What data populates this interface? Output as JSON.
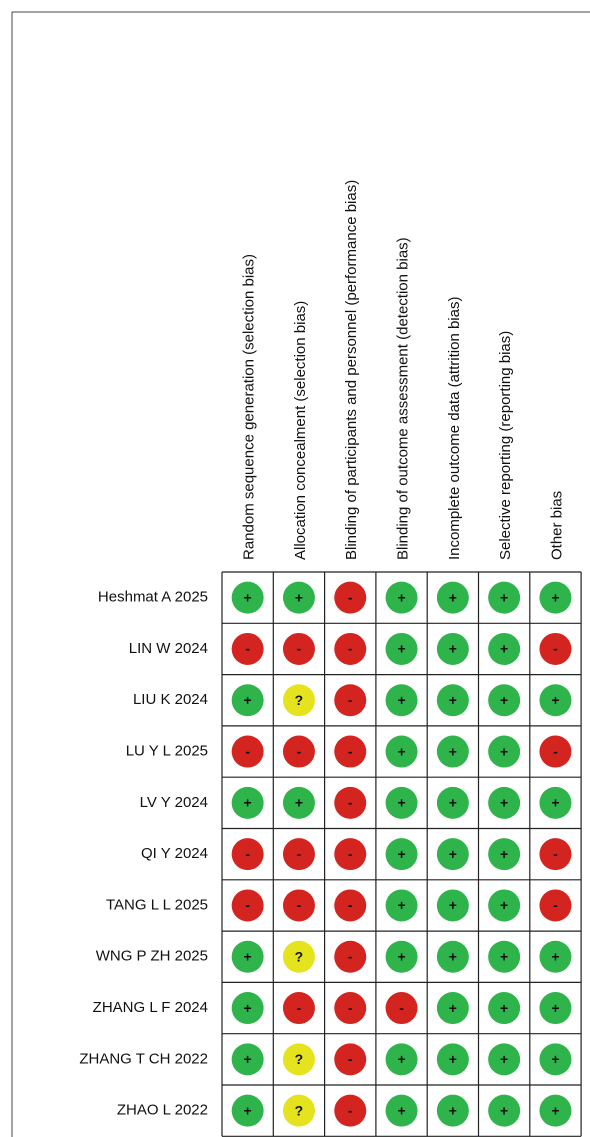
{
  "columns": [
    "Random sequence generation (selection bias)",
    "Allocation concealment (selection bias)",
    "Blinding of participants and personnel (performance bias)",
    "Blinding of outcome assessment (detection bias)",
    "Incomplete outcome data (attrition bias)",
    "Selective reporting (reporting bias)",
    "Other bias"
  ],
  "judgment_colors": {
    "+": "#2fb34b",
    "-": "#d3241f",
    "?": "#e4e31e"
  },
  "rows": [
    {
      "study": "Heshmat A  2025",
      "judgments": [
        "+",
        "+",
        "-",
        "+",
        "+",
        "+",
        "+"
      ]
    },
    {
      "study": "LIN W 2024",
      "judgments": [
        "-",
        "-",
        "-",
        "+",
        "+",
        "+",
        "-"
      ]
    },
    {
      "study": "LIU K 2024",
      "judgments": [
        "+",
        "?",
        "-",
        "+",
        "+",
        "+",
        "+"
      ]
    },
    {
      "study": "LU Y L 2025",
      "judgments": [
        "-",
        "-",
        "-",
        "+",
        "+",
        "+",
        "-"
      ]
    },
    {
      "study": "LV Y 2024",
      "judgments": [
        "+",
        "+",
        "-",
        "+",
        "+",
        "+",
        "+"
      ]
    },
    {
      "study": "QI Y 2024",
      "judgments": [
        "-",
        "-",
        "-",
        "+",
        "+",
        "+",
        "-"
      ]
    },
    {
      "study": "TANG L L 2025",
      "judgments": [
        "-",
        "-",
        "-",
        "+",
        "+",
        "+",
        "-"
      ]
    },
    {
      "study": "WNG P ZH 2025",
      "judgments": [
        "+",
        "?",
        "-",
        "+",
        "+",
        "+",
        "+"
      ]
    },
    {
      "study": "ZHANG L F 2024",
      "judgments": [
        "+",
        "-",
        "-",
        "-",
        "+",
        "+",
        "+"
      ]
    },
    {
      "study": "ZHANG T CH 2022",
      "judgments": [
        "+",
        "?",
        "-",
        "+",
        "+",
        "+",
        "+"
      ]
    },
    {
      "study": "ZHAO L 2022",
      "judgments": [
        "+",
        "?",
        "-",
        "+",
        "+",
        "+",
        "+"
      ]
    }
  ]
}
